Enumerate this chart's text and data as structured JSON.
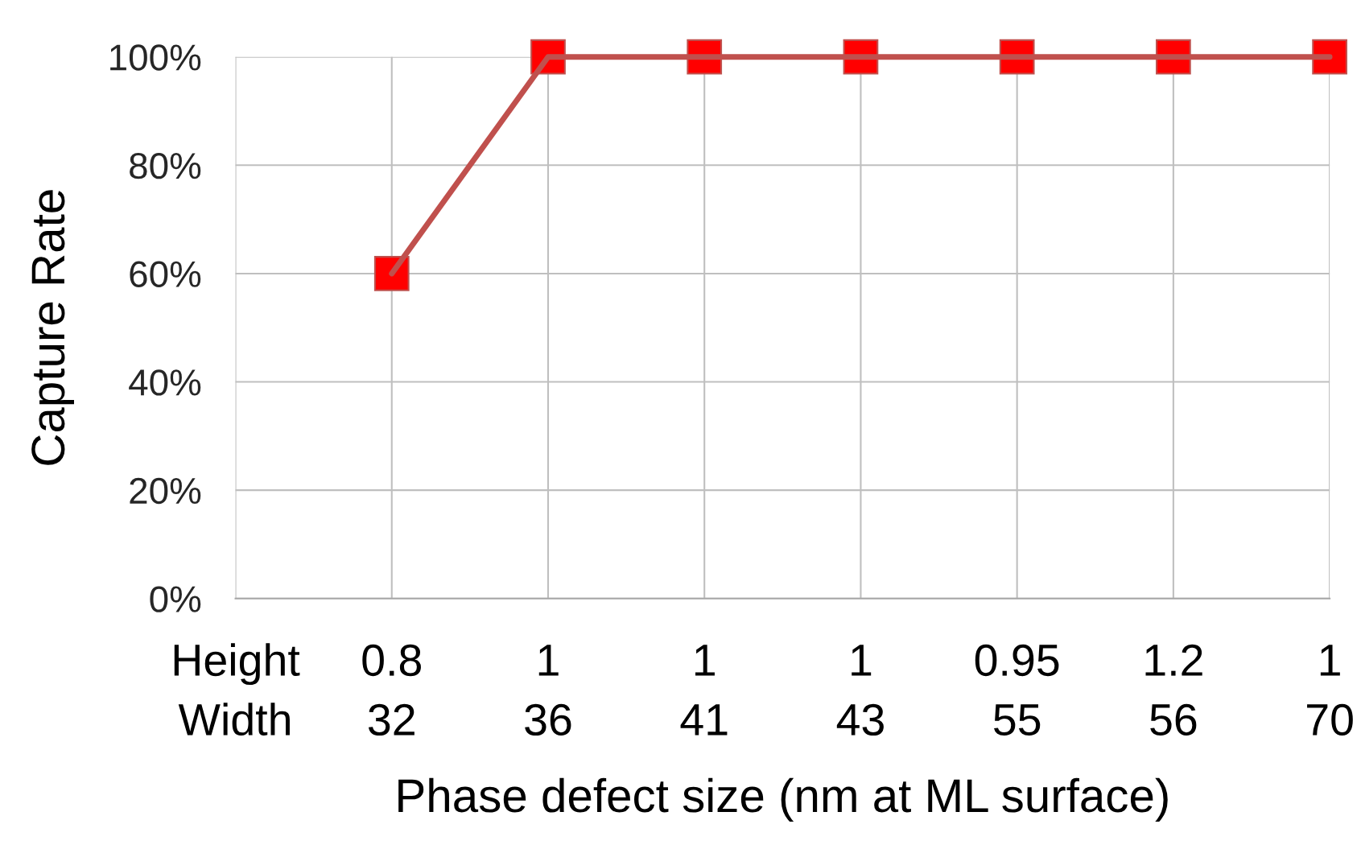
{
  "chart_data": {
    "type": "line",
    "xlabel": "Phase defect size (nm at ML surface)",
    "ylabel": "Capture Rate",
    "categories": [
      "Height\nWidth",
      "0.8\n32",
      "1\n36",
      "1\n41",
      "1\n43",
      "0.95\n55",
      "1.2\n56",
      "1\n70"
    ],
    "series": [
      {
        "color": "#c0504d",
        "colors": [
          null,
          "#ff0000",
          "#ff0000",
          "#ff0000",
          "#ff0000",
          "#ff0000",
          "#ff0000",
          "#ff0000"
        ],
        "values": [
          null,
          60,
          100,
          100,
          100,
          100,
          100,
          100
        ]
      }
    ],
    "ylim": [
      0,
      100
    ],
    "yticks": [
      {
        "value": 0,
        "label": "0%"
      },
      {
        "value": 20,
        "label": "20%"
      },
      {
        "value": 40,
        "label": "40%"
      },
      {
        "value": 60,
        "label": "60%"
      },
      {
        "value": 80,
        "label": "80%"
      },
      {
        "value": 100,
        "label": "100%"
      }
    ],
    "grid": true,
    "marker": "square",
    "line_style": "solid",
    "legend": false
  }
}
